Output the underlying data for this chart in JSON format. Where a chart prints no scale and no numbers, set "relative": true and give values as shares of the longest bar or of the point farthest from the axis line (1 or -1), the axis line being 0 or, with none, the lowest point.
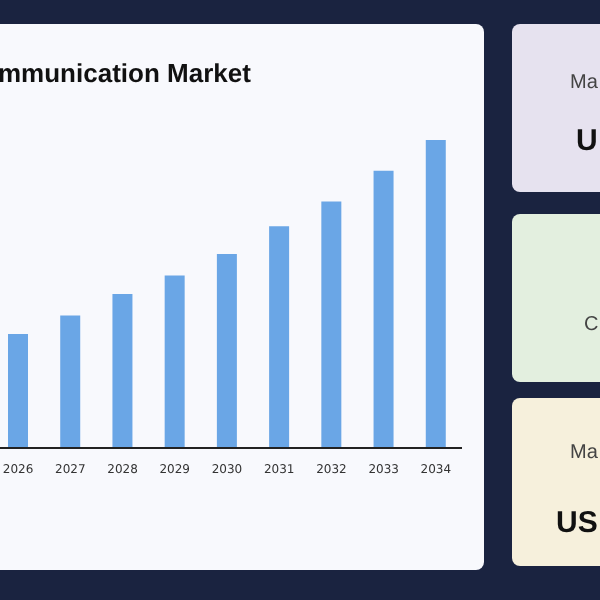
{
  "chart_data": [
    {
      "type": "bar",
      "title": "mmunication Market",
      "categories": [
        "2026",
        "2027",
        "2028",
        "2029",
        "2030",
        "2031",
        "2032",
        "2033",
        "2034"
      ],
      "values": [
        0.37,
        0.43,
        0.5,
        0.56,
        0.63,
        0.72,
        0.8,
        0.9,
        1
      ],
      "color": "#6aa6e6",
      "relative": true,
      "grid": false
    },
    {
      "type": "other",
      "annotations": [
        "Ma",
        "U",
        "C",
        "Ma",
        "US"
      ]
    }
  ]
}
